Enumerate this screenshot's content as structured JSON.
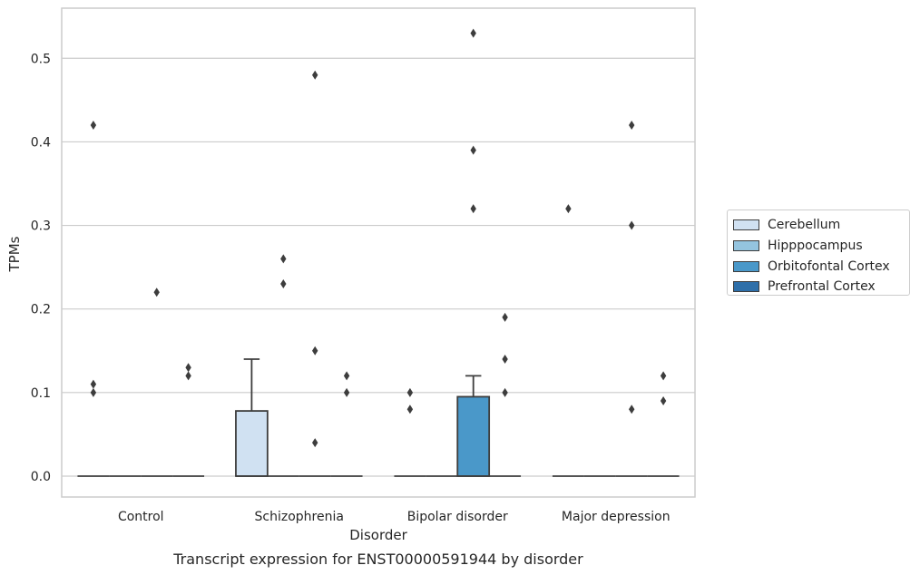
{
  "chart_data": {
    "type": "box",
    "caption": "Transcript expression for ENST00000591944 by disorder",
    "xlabel": "Disorder",
    "ylabel": "TPMs",
    "ylim": [
      -0.025,
      0.56
    ],
    "yticks": [
      0.0,
      0.1,
      0.2,
      0.3,
      0.4,
      0.5
    ],
    "ytick_labels": [
      "0.0",
      "0.1",
      "0.2",
      "0.3",
      "0.4",
      "0.5"
    ],
    "grid": "horizontal",
    "legend_position": "outside-right",
    "categories": [
      "Control",
      "Schizophrenia",
      "Bipolar disorder",
      "Major depression"
    ],
    "series": [
      {
        "name": "Cerebellum",
        "color": "#d0e1f2",
        "boxes": [
          {
            "q1": 0,
            "median": 0,
            "q3": 0,
            "whisker_low": 0,
            "whisker_high": 0,
            "outliers": [
              0.42,
              0.11,
              0.1
            ]
          },
          {
            "q1": 0,
            "median": 0,
            "q3": 0.078,
            "whisker_low": 0,
            "whisker_high": 0.14,
            "outliers": []
          },
          {
            "q1": 0,
            "median": 0,
            "q3": 0,
            "whisker_low": 0,
            "whisker_high": 0,
            "outliers": [
              0.1,
              0.08
            ]
          },
          {
            "q1": 0,
            "median": 0,
            "q3": 0,
            "whisker_low": 0,
            "whisker_high": 0,
            "outliers": [
              0.32
            ]
          }
        ]
      },
      {
        "name": "Hipppocampus",
        "color": "#94c4df",
        "boxes": [
          {
            "q1": 0,
            "median": 0,
            "q3": 0,
            "whisker_low": 0,
            "whisker_high": 0,
            "outliers": []
          },
          {
            "q1": 0,
            "median": 0,
            "q3": 0,
            "whisker_low": 0,
            "whisker_high": 0,
            "outliers": [
              0.26,
              0.23
            ]
          },
          {
            "q1": 0,
            "median": 0,
            "q3": 0,
            "whisker_low": 0,
            "whisker_high": 0,
            "outliers": []
          },
          {
            "q1": 0,
            "median": 0,
            "q3": 0,
            "whisker_low": 0,
            "whisker_high": 0,
            "outliers": []
          }
        ]
      },
      {
        "name": "Orbitofontal Cortex",
        "color": "#4a98c9",
        "boxes": [
          {
            "q1": 0,
            "median": 0,
            "q3": 0,
            "whisker_low": 0,
            "whisker_high": 0,
            "outliers": [
              0.22
            ]
          },
          {
            "q1": 0,
            "median": 0,
            "q3": 0,
            "whisker_low": 0,
            "whisker_high": 0,
            "outliers": [
              0.48,
              0.15,
              0.04
            ]
          },
          {
            "q1": 0,
            "median": 0,
            "q3": 0.095,
            "whisker_low": 0,
            "whisker_high": 0.12,
            "outliers": [
              0.53,
              0.39,
              0.32
            ]
          },
          {
            "q1": 0,
            "median": 0,
            "q3": 0,
            "whisker_low": 0,
            "whisker_high": 0,
            "outliers": [
              0.42,
              0.3,
              0.08
            ]
          }
        ]
      },
      {
        "name": "Prefrontal Cortex",
        "color": "#2e6fa9",
        "boxes": [
          {
            "q1": 0,
            "median": 0,
            "q3": 0,
            "whisker_low": 0,
            "whisker_high": 0,
            "outliers": [
              0.13,
              0.12
            ]
          },
          {
            "q1": 0,
            "median": 0,
            "q3": 0,
            "whisker_low": 0,
            "whisker_high": 0,
            "outliers": [
              0.12,
              0.1
            ]
          },
          {
            "q1": 0,
            "median": 0,
            "q3": 0,
            "whisker_low": 0,
            "whisker_high": 0,
            "outliers": [
              0.19,
              0.14,
              0.1
            ]
          },
          {
            "q1": 0,
            "median": 0,
            "q3": 0,
            "whisker_low": 0,
            "whisker_high": 0,
            "outliers": [
              0.12,
              0.09
            ]
          }
        ]
      }
    ]
  }
}
